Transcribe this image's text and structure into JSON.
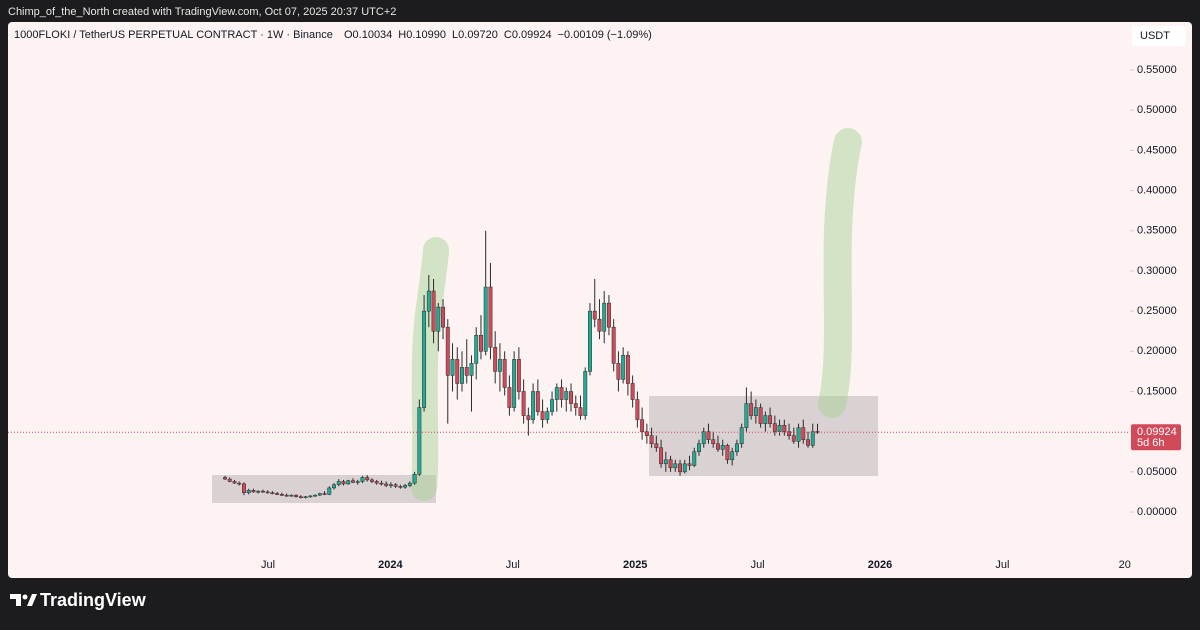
{
  "chart_data": {
    "type": "candlestick",
    "credit": "Chimp_of_the_North created with TradingView.com, Oct 07, 2025 20:37 UTC+2",
    "symbol": "1000FLOKI / TetherUS PERPETUAL CONTRACT · 1W · Binance",
    "legend": [
      {
        "label": "O",
        "value": "0.10034"
      },
      {
        "label": "H",
        "value": "0.10990"
      },
      {
        "label": "L",
        "value": "0.09720"
      },
      {
        "label": "C",
        "value": "0.09924"
      }
    ],
    "change": "−0.00109 (−1.09%)",
    "currency": "USDT",
    "brand": "TradingView",
    "up_color": "#22ab94",
    "down_color": "#d14a5a",
    "ylim": [
      -0.0821,
      0.6098
    ],
    "yticks": [
      {
        "value": 0,
        "label": "0.00000"
      },
      {
        "value": 0.05,
        "label": "0.05000"
      },
      {
        "value": 0.1,
        "label": "0.10000"
      },
      {
        "value": 0.15,
        "label": "0.15000"
      },
      {
        "value": 0.2,
        "label": "0.20000"
      },
      {
        "value": 0.25,
        "label": "0.25000"
      },
      {
        "value": 0.3,
        "label": "0.30000"
      },
      {
        "value": 0.35,
        "label": "0.35000"
      },
      {
        "value": 0.4,
        "label": "0.40000"
      },
      {
        "value": 0.45,
        "label": "0.45000"
      },
      {
        "value": 0.5,
        "label": "0.50000"
      },
      {
        "value": 0.55,
        "label": "0.55000"
      }
    ],
    "xtick_labels": [
      "Jul",
      "2024",
      "Jul",
      "2025",
      "Jul",
      "2026",
      "Jul",
      "20"
    ],
    "last_price": {
      "value": 0.09924,
      "label": "0.09924"
    },
    "countdown": "5d 6h",
    "ohlc": [
      [
        0.043,
        0.045,
        0.04,
        0.041
      ],
      [
        0.041,
        0.043,
        0.037,
        0.038
      ],
      [
        0.038,
        0.04,
        0.035,
        0.036
      ],
      [
        0.036,
        0.038,
        0.033,
        0.035
      ],
      [
        0.035,
        0.037,
        0.021,
        0.024
      ],
      [
        0.024,
        0.029,
        0.022,
        0.027
      ],
      [
        0.027,
        0.029,
        0.024,
        0.025
      ],
      [
        0.025,
        0.027,
        0.023,
        0.026
      ],
      [
        0.026,
        0.028,
        0.024,
        0.025
      ],
      [
        0.025,
        0.027,
        0.023,
        0.024
      ],
      [
        0.024,
        0.026,
        0.022,
        0.023
      ],
      [
        0.023,
        0.025,
        0.021,
        0.022
      ],
      [
        0.022,
        0.024,
        0.02,
        0.021
      ],
      [
        0.021,
        0.023,
        0.019,
        0.02
      ],
      [
        0.02,
        0.022,
        0.019,
        0.021
      ],
      [
        0.021,
        0.022,
        0.018,
        0.019
      ],
      [
        0.019,
        0.021,
        0.017,
        0.018
      ],
      [
        0.018,
        0.02,
        0.017,
        0.019
      ],
      [
        0.019,
        0.021,
        0.018,
        0.02
      ],
      [
        0.02,
        0.022,
        0.019,
        0.021
      ],
      [
        0.021,
        0.024,
        0.02,
        0.023
      ],
      [
        0.023,
        0.026,
        0.021,
        0.022
      ],
      [
        0.022,
        0.032,
        0.021,
        0.03
      ],
      [
        0.03,
        0.036,
        0.028,
        0.034
      ],
      [
        0.034,
        0.041,
        0.032,
        0.038
      ],
      [
        0.038,
        0.04,
        0.033,
        0.035
      ],
      [
        0.035,
        0.04,
        0.034,
        0.039
      ],
      [
        0.039,
        0.042,
        0.036,
        0.037
      ],
      [
        0.037,
        0.04,
        0.034,
        0.038
      ],
      [
        0.038,
        0.045,
        0.036,
        0.043
      ],
      [
        0.043,
        0.046,
        0.038,
        0.04
      ],
      [
        0.04,
        0.042,
        0.036,
        0.038
      ],
      [
        0.038,
        0.04,
        0.034,
        0.036
      ],
      [
        0.036,
        0.039,
        0.033,
        0.035
      ],
      [
        0.035,
        0.038,
        0.031,
        0.033
      ],
      [
        0.033,
        0.037,
        0.03,
        0.034
      ],
      [
        0.034,
        0.036,
        0.03,
        0.032
      ],
      [
        0.032,
        0.034,
        0.029,
        0.031
      ],
      [
        0.031,
        0.035,
        0.029,
        0.033
      ],
      [
        0.033,
        0.038,
        0.031,
        0.036
      ],
      [
        0.036,
        0.05,
        0.034,
        0.047
      ],
      [
        0.047,
        0.14,
        0.045,
        0.13
      ],
      [
        0.13,
        0.27,
        0.125,
        0.25
      ],
      [
        0.25,
        0.295,
        0.23,
        0.275
      ],
      [
        0.275,
        0.29,
        0.21,
        0.225
      ],
      [
        0.225,
        0.26,
        0.2,
        0.255
      ],
      [
        0.255,
        0.265,
        0.215,
        0.23
      ],
      [
        0.23,
        0.24,
        0.11,
        0.17
      ],
      [
        0.17,
        0.21,
        0.15,
        0.19
      ],
      [
        0.19,
        0.205,
        0.14,
        0.16
      ],
      [
        0.16,
        0.2,
        0.15,
        0.18
      ],
      [
        0.18,
        0.215,
        0.16,
        0.17
      ],
      [
        0.17,
        0.195,
        0.125,
        0.185
      ],
      [
        0.185,
        0.23,
        0.165,
        0.22
      ],
      [
        0.22,
        0.245,
        0.19,
        0.2
      ],
      [
        0.2,
        0.35,
        0.195,
        0.28
      ],
      [
        0.28,
        0.31,
        0.19,
        0.205
      ],
      [
        0.205,
        0.225,
        0.16,
        0.175
      ],
      [
        0.175,
        0.21,
        0.15,
        0.19
      ],
      [
        0.19,
        0.2,
        0.145,
        0.155
      ],
      [
        0.155,
        0.17,
        0.12,
        0.13
      ],
      [
        0.13,
        0.2,
        0.125,
        0.19
      ],
      [
        0.19,
        0.205,
        0.14,
        0.15
      ],
      [
        0.15,
        0.165,
        0.11,
        0.12
      ],
      [
        0.12,
        0.13,
        0.095,
        0.115
      ],
      [
        0.115,
        0.16,
        0.11,
        0.15
      ],
      [
        0.15,
        0.165,
        0.12,
        0.125
      ],
      [
        0.125,
        0.14,
        0.105,
        0.115
      ],
      [
        0.115,
        0.13,
        0.11,
        0.125
      ],
      [
        0.125,
        0.15,
        0.12,
        0.14
      ],
      [
        0.14,
        0.16,
        0.125,
        0.155
      ],
      [
        0.155,
        0.165,
        0.13,
        0.14
      ],
      [
        0.14,
        0.155,
        0.125,
        0.15
      ],
      [
        0.15,
        0.16,
        0.125,
        0.135
      ],
      [
        0.135,
        0.145,
        0.12,
        0.13
      ],
      [
        0.13,
        0.145,
        0.115,
        0.12
      ],
      [
        0.12,
        0.18,
        0.115,
        0.175
      ],
      [
        0.175,
        0.26,
        0.17,
        0.25
      ],
      [
        0.25,
        0.29,
        0.23,
        0.24
      ],
      [
        0.24,
        0.265,
        0.215,
        0.225
      ],
      [
        0.225,
        0.275,
        0.21,
        0.26
      ],
      [
        0.26,
        0.27,
        0.22,
        0.23
      ],
      [
        0.23,
        0.24,
        0.175,
        0.185
      ],
      [
        0.185,
        0.2,
        0.15,
        0.165
      ],
      [
        0.165,
        0.205,
        0.16,
        0.195
      ],
      [
        0.195,
        0.2,
        0.145,
        0.16
      ],
      [
        0.16,
        0.17,
        0.13,
        0.14
      ],
      [
        0.14,
        0.15,
        0.105,
        0.115
      ],
      [
        0.115,
        0.13,
        0.09,
        0.1
      ],
      [
        0.1,
        0.11,
        0.085,
        0.095
      ],
      [
        0.095,
        0.105,
        0.08,
        0.085
      ],
      [
        0.085,
        0.095,
        0.075,
        0.08
      ],
      [
        0.08,
        0.09,
        0.055,
        0.06
      ],
      [
        0.06,
        0.075,
        0.05,
        0.065
      ],
      [
        0.065,
        0.07,
        0.05,
        0.055
      ],
      [
        0.055,
        0.065,
        0.05,
        0.06
      ],
      [
        0.06,
        0.065,
        0.045,
        0.05
      ],
      [
        0.05,
        0.065,
        0.048,
        0.06
      ],
      [
        0.06,
        0.07,
        0.052,
        0.058
      ],
      [
        0.058,
        0.08,
        0.056,
        0.075
      ],
      [
        0.075,
        0.09,
        0.07,
        0.085
      ],
      [
        0.085,
        0.105,
        0.08,
        0.1
      ],
      [
        0.1,
        0.11,
        0.085,
        0.09
      ],
      [
        0.09,
        0.1,
        0.08,
        0.085
      ],
      [
        0.085,
        0.095,
        0.075,
        0.078
      ],
      [
        0.078,
        0.09,
        0.07,
        0.083
      ],
      [
        0.083,
        0.085,
        0.06,
        0.065
      ],
      [
        0.065,
        0.08,
        0.058,
        0.075
      ],
      [
        0.075,
        0.09,
        0.07,
        0.085
      ],
      [
        0.085,
        0.11,
        0.08,
        0.105
      ],
      [
        0.105,
        0.155,
        0.1,
        0.135
      ],
      [
        0.135,
        0.15,
        0.115,
        0.12
      ],
      [
        0.12,
        0.14,
        0.11,
        0.13
      ],
      [
        0.13,
        0.135,
        0.105,
        0.11
      ],
      [
        0.11,
        0.125,
        0.1,
        0.12
      ],
      [
        0.12,
        0.13,
        0.105,
        0.11
      ],
      [
        0.11,
        0.12,
        0.095,
        0.1
      ],
      [
        0.1,
        0.115,
        0.095,
        0.108
      ],
      [
        0.108,
        0.115,
        0.095,
        0.1
      ],
      [
        0.1,
        0.11,
        0.09,
        0.095
      ],
      [
        0.095,
        0.105,
        0.085,
        0.088
      ],
      [
        0.088,
        0.11,
        0.08,
        0.105
      ],
      [
        0.105,
        0.115,
        0.085,
        0.09
      ],
      [
        0.09,
        0.1,
        0.08,
        0.083
      ],
      [
        0.083,
        0.11,
        0.08,
        0.1
      ],
      [
        0.10034,
        0.1099,
        0.0972,
        0.09924
      ]
    ]
  }
}
